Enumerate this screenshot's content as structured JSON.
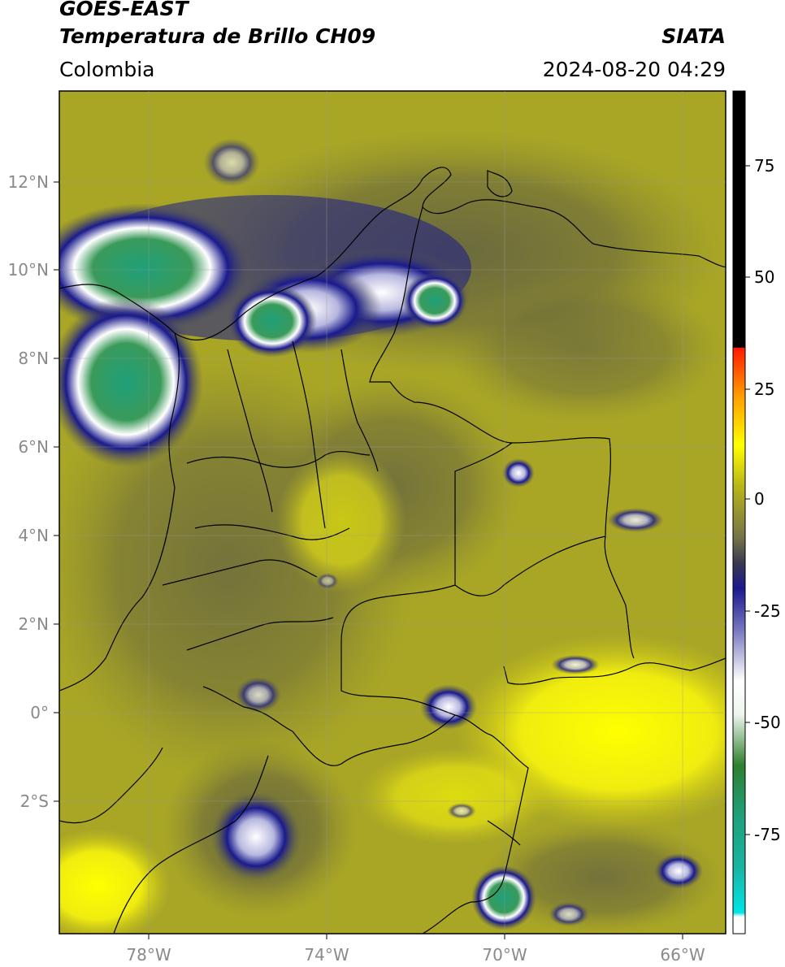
{
  "header": {
    "title_line1": "GOES-EAST",
    "title_line2": "Temperatura de Brillo CH09",
    "brand": "SIATA",
    "region": "Colombia",
    "datetime": "2024-08-20 04:29"
  },
  "map": {
    "lat_labels": [
      "12°N",
      "10°N",
      "8°N",
      "6°N",
      "4°N",
      "2°N",
      "0°",
      "2°S"
    ],
    "lon_labels": [
      "78°W",
      "74°W",
      "70°W",
      "66°W"
    ]
  },
  "colorbar": {
    "labels": [
      "75",
      "50",
      "25",
      "0",
      "-25",
      "-50",
      "-75"
    ],
    "colors": {
      "white": "#ffffff",
      "cyan": "#00e5e5",
      "teal": "#1fa07a",
      "green": "#2f7f2f",
      "blue": "#1a1a8c",
      "grey": "#5a5a4e",
      "olive": "#b8b418",
      "yellow": "#ffff00",
      "orange": "#ff9900",
      "red": "#ff1a00",
      "black": "#000000"
    }
  }
}
